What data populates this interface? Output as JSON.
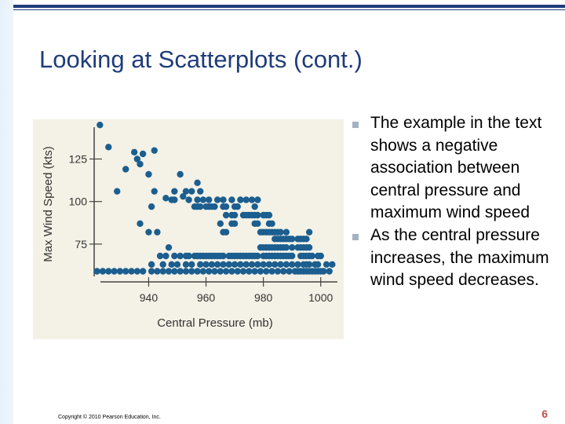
{
  "slide": {
    "title": "Looking at Scatterplots (cont.)",
    "bullets": [
      "The example in the text shows a negative association between central pressure and maximum wind speed",
      "As the central pressure increases, the maximum wind speed decreases."
    ],
    "copyright": "Copyright © 2010 Pearson Education, Inc.",
    "page_number": "6"
  },
  "colors": {
    "accent": "#1f3c7a",
    "point": "#1b5e8f",
    "figure_background": "#f4f1e6",
    "page_number": "#c0504d"
  },
  "chart_data": {
    "type": "scatter",
    "title": "",
    "xlabel": "Central Pressure (mb)",
    "ylabel": "Max Wind Speed (kts)",
    "xlim": [
      921,
      1005
    ],
    "ylim": [
      56,
      146
    ],
    "x_ticks": [
      940,
      960,
      980,
      1000
    ],
    "y_ticks": [
      75,
      100,
      125
    ],
    "grid": false,
    "points": [
      [
        923,
        145
      ],
      [
        926,
        132
      ],
      [
        932,
        119
      ],
      [
        935,
        129
      ],
      [
        936,
        125
      ],
      [
        937,
        122
      ],
      [
        938,
        128
      ],
      [
        940,
        116
      ],
      [
        942,
        130
      ],
      [
        951,
        116
      ],
      [
        957,
        111
      ],
      [
        942,
        106
      ],
      [
        946,
        102
      ],
      [
        948,
        101
      ],
      [
        949,
        106
      ],
      [
        949,
        101
      ],
      [
        952,
        103
      ],
      [
        953,
        106
      ],
      [
        954,
        101
      ],
      [
        955,
        106
      ],
      [
        957,
        101
      ],
      [
        958,
        106
      ],
      [
        959,
        101
      ],
      [
        961,
        101
      ],
      [
        963,
        97
      ],
      [
        964,
        101
      ],
      [
        966,
        101
      ],
      [
        967,
        97
      ],
      [
        968,
        97
      ],
      [
        969,
        101
      ],
      [
        970,
        97
      ],
      [
        971,
        97
      ],
      [
        972,
        101
      ],
      [
        974,
        101
      ],
      [
        976,
        101
      ],
      [
        977,
        97
      ],
      [
        978,
        101
      ],
      [
        956,
        97
      ],
      [
        957,
        97
      ],
      [
        958,
        97
      ],
      [
        960,
        97
      ],
      [
        961,
        97
      ],
      [
        962,
        97
      ],
      [
        966,
        97
      ],
      [
        967,
        92
      ],
      [
        968,
        92
      ],
      [
        969,
        92
      ],
      [
        970,
        92
      ],
      [
        973,
        92
      ],
      [
        974,
        92
      ],
      [
        975,
        92
      ],
      [
        976,
        92
      ],
      [
        977,
        92
      ],
      [
        978,
        92
      ],
      [
        979,
        92
      ],
      [
        980,
        92
      ],
      [
        981,
        92
      ],
      [
        982,
        92
      ],
      [
        969,
        87
      ],
      [
        970,
        87
      ],
      [
        977,
        87
      ],
      [
        978,
        87
      ],
      [
        979,
        87
      ],
      [
        982,
        87
      ],
      [
        983,
        87
      ],
      [
        965,
        87
      ],
      [
        966,
        82
      ],
      [
        967,
        82
      ],
      [
        979,
        82
      ],
      [
        980,
        82
      ],
      [
        981,
        82
      ],
      [
        982,
        82
      ],
      [
        983,
        82
      ],
      [
        984,
        82
      ],
      [
        985,
        82
      ],
      [
        986,
        82
      ],
      [
        988,
        82
      ],
      [
        996,
        82
      ],
      [
        984,
        78
      ],
      [
        985,
        78
      ],
      [
        986,
        78
      ],
      [
        987,
        78
      ],
      [
        988,
        78
      ],
      [
        989,
        78
      ],
      [
        990,
        78
      ],
      [
        991,
        78
      ],
      [
        992,
        78
      ],
      [
        993,
        78
      ],
      [
        994,
        78
      ],
      [
        995,
        78
      ],
      [
        983,
        73
      ],
      [
        984,
        73
      ],
      [
        985,
        73
      ],
      [
        986,
        73
      ],
      [
        987,
        73
      ],
      [
        988,
        73
      ],
      [
        990,
        73
      ],
      [
        991,
        73
      ],
      [
        992,
        73
      ],
      [
        993,
        73
      ],
      [
        994,
        73
      ],
      [
        995,
        73
      ],
      [
        996,
        73
      ],
      [
        979,
        73
      ],
      [
        980,
        73
      ],
      [
        981,
        73
      ],
      [
        982,
        73
      ],
      [
        984,
        68
      ],
      [
        986,
        68
      ],
      [
        987,
        68
      ],
      [
        988,
        68
      ],
      [
        990,
        68
      ],
      [
        991,
        68
      ],
      [
        993,
        68
      ],
      [
        994,
        68
      ],
      [
        995,
        68
      ],
      [
        996,
        68
      ],
      [
        997,
        68
      ],
      [
        929,
        106
      ],
      [
        941,
        97
      ],
      [
        937,
        87
      ],
      [
        940,
        82
      ],
      [
        943,
        82
      ],
      [
        947,
        73
      ],
      [
        951,
        68
      ],
      [
        953,
        68
      ],
      [
        956,
        68
      ],
      [
        958,
        68
      ],
      [
        960,
        68
      ],
      [
        962,
        68
      ],
      [
        964,
        68
      ],
      [
        966,
        68
      ],
      [
        968,
        68
      ],
      [
        970,
        68
      ],
      [
        972,
        68
      ],
      [
        974,
        68
      ],
      [
        976,
        68
      ],
      [
        978,
        68
      ],
      [
        980,
        68
      ],
      [
        982,
        68
      ],
      [
        985,
        68
      ],
      [
        988,
        68
      ],
      [
        1000,
        68
      ],
      [
        992,
        63
      ],
      [
        995,
        63
      ],
      [
        998,
        63
      ],
      [
        944,
        68
      ],
      [
        946,
        68
      ],
      [
        949,
        68
      ],
      [
        954,
        68
      ],
      [
        957,
        68
      ],
      [
        959,
        68
      ],
      [
        961,
        68
      ],
      [
        963,
        68
      ],
      [
        965,
        68
      ],
      [
        967,
        68
      ],
      [
        969,
        68
      ],
      [
        971,
        68
      ],
      [
        973,
        68
      ],
      [
        975,
        68
      ],
      [
        977,
        68
      ],
      [
        979,
        68
      ],
      [
        981,
        68
      ],
      [
        983,
        68
      ],
      [
        986,
        68
      ],
      [
        989,
        68
      ],
      [
        991,
        68
      ],
      [
        993,
        68
      ],
      [
        996,
        68
      ],
      [
        999,
        68
      ],
      [
        941,
        63
      ],
      [
        945,
        63
      ],
      [
        948,
        63
      ],
      [
        950,
        63
      ],
      [
        953,
        63
      ],
      [
        955,
        63
      ],
      [
        956,
        63
      ],
      [
        958,
        63
      ],
      [
        960,
        63
      ],
      [
        962,
        63
      ],
      [
        964,
        63
      ],
      [
        966,
        63
      ],
      [
        968,
        63
      ],
      [
        970,
        63
      ],
      [
        972,
        63
      ],
      [
        974,
        63
      ],
      [
        976,
        63
      ],
      [
        978,
        63
      ],
      [
        980,
        63
      ],
      [
        982,
        63
      ],
      [
        984,
        63
      ],
      [
        986,
        63
      ],
      [
        988,
        63
      ],
      [
        990,
        63
      ],
      [
        994,
        63
      ],
      [
        996,
        63
      ],
      [
        999,
        63
      ],
      [
        1002,
        63
      ],
      [
        1004,
        63
      ],
      [
        1001,
        59
      ],
      [
        1003,
        59
      ],
      [
        992,
        59
      ],
      [
        994,
        59
      ],
      [
        995,
        59
      ],
      [
        996,
        59
      ],
      [
        997,
        59
      ],
      [
        998,
        59
      ],
      [
        999,
        59
      ],
      [
        1000,
        59
      ],
      [
        991,
        59
      ],
      [
        993,
        59
      ],
      [
        981,
        59
      ],
      [
        983,
        59
      ],
      [
        985,
        59
      ],
      [
        987,
        59
      ],
      [
        989,
        59
      ],
      [
        979,
        59
      ],
      [
        977,
        59
      ],
      [
        975,
        59
      ],
      [
        973,
        59
      ],
      [
        971,
        59
      ],
      [
        969,
        59
      ],
      [
        967,
        59
      ],
      [
        965,
        59
      ],
      [
        963,
        59
      ],
      [
        961,
        59
      ],
      [
        959,
        59
      ],
      [
        957,
        59
      ],
      [
        955,
        59
      ],
      [
        953,
        59
      ],
      [
        951,
        59
      ],
      [
        949,
        59
      ],
      [
        947,
        59
      ],
      [
        945,
        59
      ],
      [
        943,
        59
      ],
      [
        941,
        59
      ],
      [
        938,
        59
      ],
      [
        936,
        59
      ],
      [
        934,
        59
      ],
      [
        932,
        59
      ],
      [
        930,
        59
      ],
      [
        928,
        59
      ],
      [
        926,
        59
      ],
      [
        924,
        59
      ],
      [
        922,
        59
      ]
    ]
  }
}
